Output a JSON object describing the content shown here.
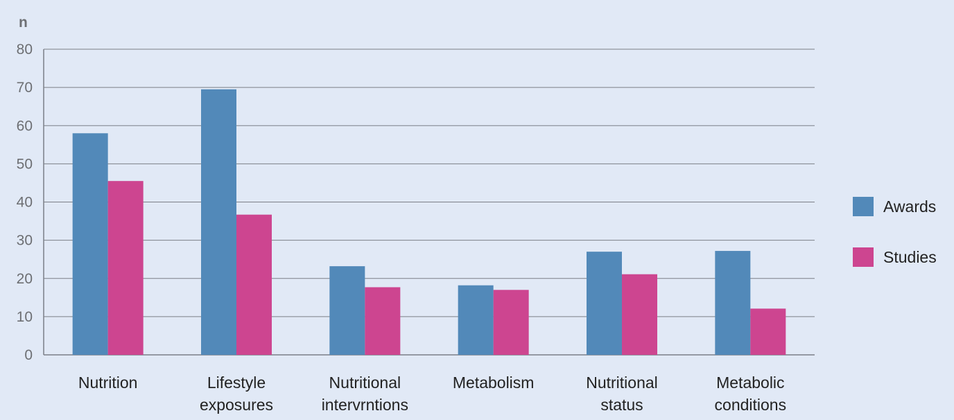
{
  "chart_data": {
    "type": "bar",
    "ylabel": "n",
    "ylim": [
      0,
      80
    ],
    "yticks": [
      0,
      10,
      20,
      30,
      40,
      50,
      60,
      70,
      80
    ],
    "grid": true,
    "legend_position": "right",
    "categories": [
      [
        "Nutrition"
      ],
      [
        "Lifestyle",
        "exposures"
      ],
      [
        "Nutritional",
        "intervrntions"
      ],
      [
        "Metabolism"
      ],
      [
        "Nutritional",
        "status"
      ],
      [
        "Metabolic",
        "conditions"
      ]
    ],
    "series": [
      {
        "name": "Awards",
        "color": "#5289b9",
        "values": [
          58,
          69.5,
          23.2,
          18.2,
          27,
          27.2
        ]
      },
      {
        "name": "Studies",
        "color": "#cd4590",
        "values": [
          45.5,
          36.7,
          17.7,
          17,
          21.1,
          12.1
        ]
      }
    ]
  },
  "colors": {
    "background": "#e1e9f6",
    "grid": "#7b7f87",
    "axis": "#7b7f87"
  }
}
